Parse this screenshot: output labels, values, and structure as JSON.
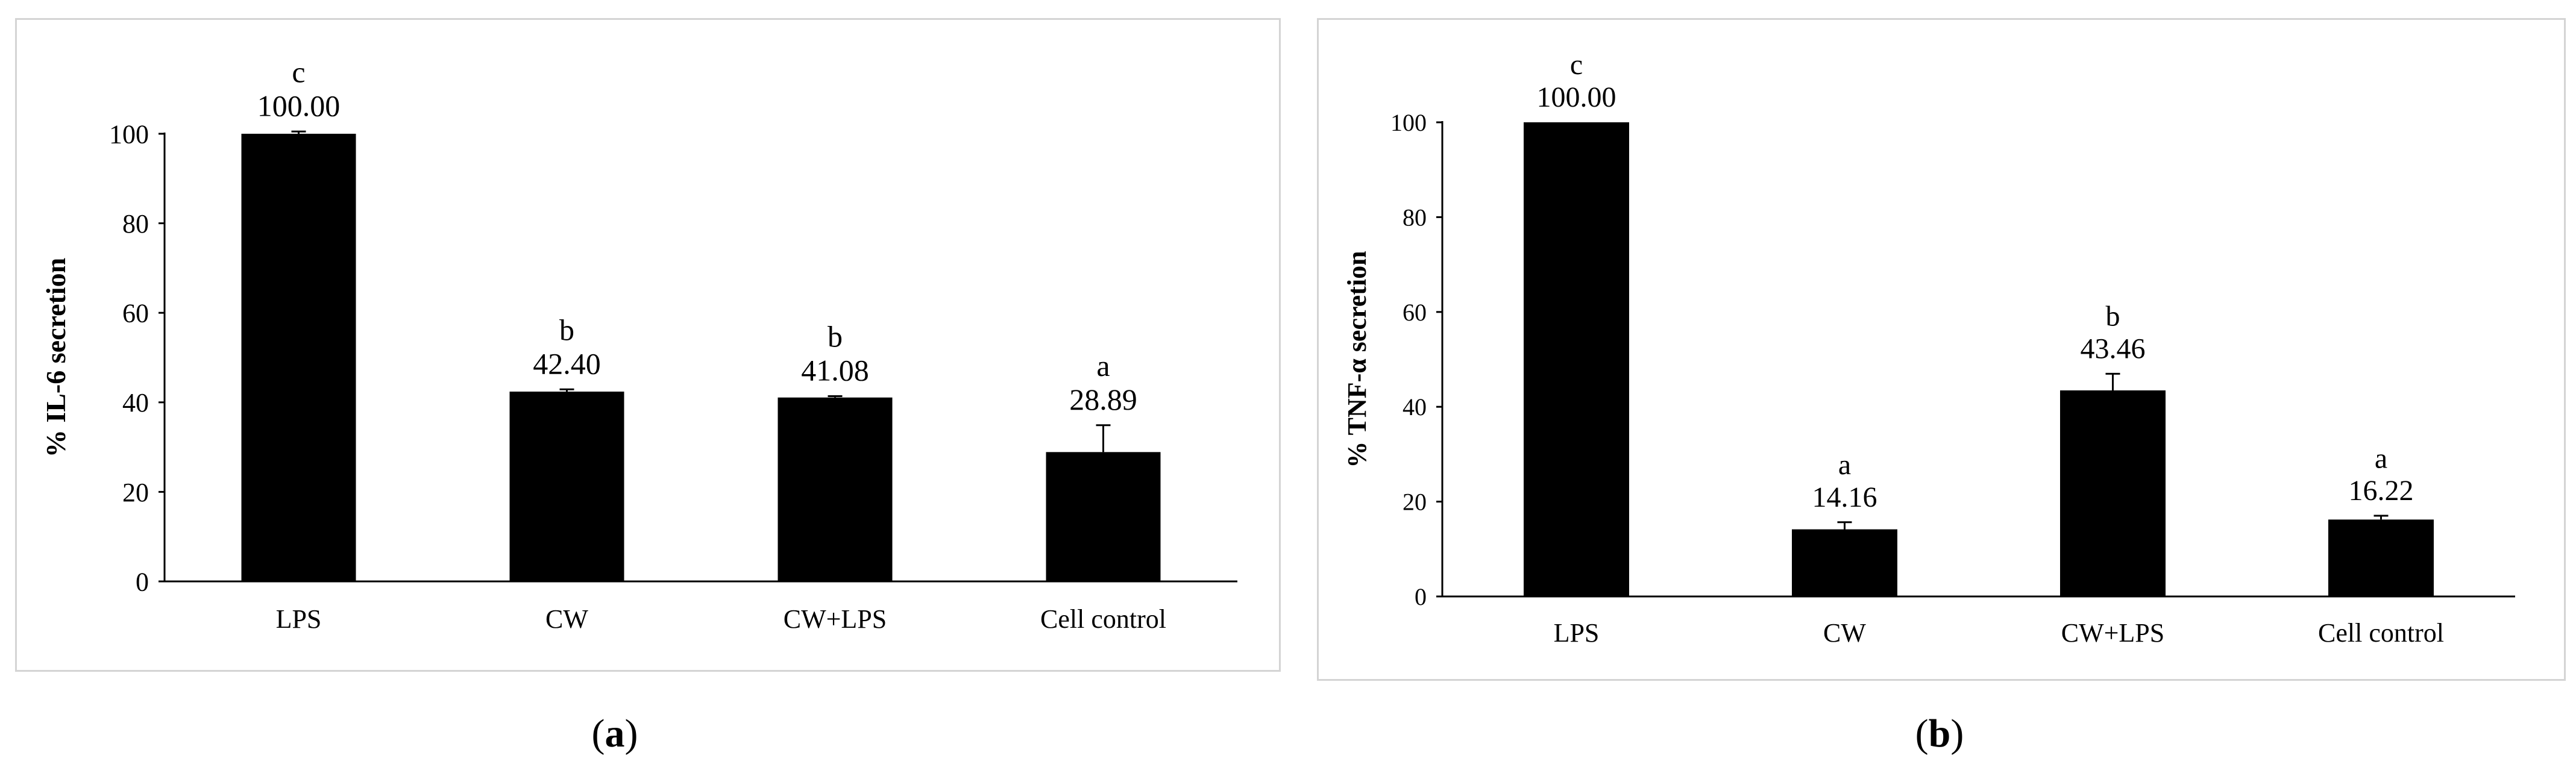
{
  "chart_data": [
    {
      "type": "bar",
      "panel": "a",
      "categories": [
        "LPS",
        "CW",
        "CW+LPS",
        "Cell control"
      ],
      "values": [
        100.0,
        42.4,
        41.08,
        28.89
      ],
      "value_labels": [
        "100.00",
        "42.40",
        "41.08",
        "28.89"
      ],
      "significance": [
        "c",
        "b",
        "b",
        "a"
      ],
      "error": [
        0.5,
        0.5,
        0.3,
        6.0
      ],
      "title": "",
      "xlabel": "",
      "ylabel": "% IL-6 secretion",
      "ylim": [
        0,
        100
      ],
      "yticks": [
        0,
        20,
        40,
        60,
        80,
        100
      ],
      "ytick_labels": [
        "0",
        "20",
        "40",
        "60",
        "80",
        "100"
      ],
      "grid": false,
      "bar_color": "#000000"
    },
    {
      "type": "bar",
      "panel": "b",
      "categories": [
        "LPS",
        "CW",
        "CW+LPS",
        "Cell control"
      ],
      "values": [
        100.0,
        14.16,
        43.46,
        16.22
      ],
      "value_labels": [
        "100.00",
        "14.16",
        "43.46",
        "16.22"
      ],
      "significance": [
        "c",
        "a",
        "b",
        "a"
      ],
      "error": [
        0.0,
        1.5,
        3.5,
        0.8
      ],
      "title": "",
      "xlabel": "",
      "ylabel": "% TNF-α secretion",
      "ylim": [
        0,
        100
      ],
      "yticks": [
        0,
        20,
        40,
        60,
        80,
        100
      ],
      "ytick_labels": [
        "0",
        "20",
        "40",
        "60",
        "80",
        "100"
      ],
      "grid": false,
      "bar_color": "#000000"
    }
  ],
  "captions": {
    "a": {
      "open": "(",
      "letter": "a",
      "close": ")"
    },
    "b": {
      "open": "(",
      "letter": "b",
      "close": ")"
    }
  }
}
